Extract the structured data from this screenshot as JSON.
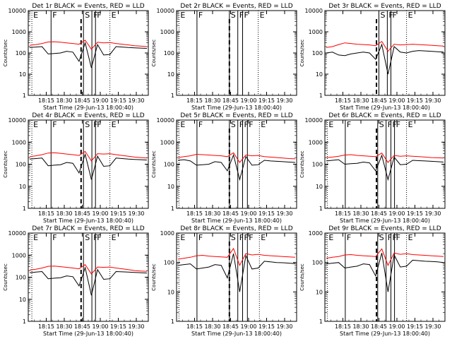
{
  "chart_data": [
    {
      "type": "line",
      "title": "Det 1r BLACK = Events, RED = LLD",
      "ylabel": "Counts/sec",
      "xlabel": "Start Time (29-Jun-13 18:00:40)",
      "x_ticks": [
        "18:15",
        "18:30",
        "18:45",
        "19:00",
        "19:15",
        "19:30"
      ],
      "y_ticks": [
        "1",
        "10",
        "100",
        "1000",
        "10000"
      ],
      "ylim": [
        1,
        10000
      ],
      "yscale": "log",
      "markers": [
        {
          "label": "E",
          "t": "18:03"
        },
        {
          "label": "F",
          "t": "18:19"
        },
        {
          "label": "S",
          "t": "18:46"
        },
        {
          "label": "F",
          "t": "18:53"
        },
        {
          "label": "F",
          "t": "18:56"
        },
        {
          "label": "E",
          "t": "19:08"
        }
      ],
      "dashed_t": "18:44",
      "series": [
        {
          "color": "#000000",
          "values": [
            180,
            190,
            200,
            90,
            95,
            100,
            120,
            110,
            40,
            300,
            20,
            250,
            80,
            85,
            200,
            190,
            180,
            175,
            170,
            165
          ]
        },
        {
          "color": "#ff0000",
          "values": [
            230,
            250,
            280,
            330,
            340,
            320,
            300,
            280,
            260,
            400,
            150,
            320,
            300,
            310,
            280,
            260,
            240,
            220,
            210,
            200
          ]
        }
      ]
    },
    {
      "type": "line",
      "title": "Det 2r BLACK = Events, RED = LLD",
      "ylabel": "Counts/sec",
      "xlabel": "Start Time (29-Jun-13 18:00:40)",
      "x_ticks": [
        "18:15",
        "18:30",
        "18:45",
        "19:00",
        "19:15",
        "19:30"
      ],
      "y_ticks": [
        "1",
        "10",
        "100",
        "1000",
        "10000"
      ],
      "ylim": [
        1,
        10000
      ],
      "yscale": "log",
      "markers": [
        {
          "label": "E",
          "t": "18:02"
        },
        {
          "label": "F",
          "t": "18:17"
        },
        {
          "label": "S",
          "t": "18:44"
        },
        {
          "label": "F",
          "t": "18:51"
        },
        {
          "label": "F",
          "t": "18:55"
        },
        {
          "label": "E",
          "t": "19:08"
        }
      ],
      "dashed_t": "18:44",
      "series": []
    },
    {
      "type": "line",
      "title": "Det 3r BLACK = Events, RED = LLD",
      "ylabel": "Counts/sec",
      "xlabel": "Start Time (29-Jun-13 18:00:40)",
      "x_ticks": [
        "18:15",
        "18:30",
        "18:45",
        "19:00",
        "19:15",
        "19:30"
      ],
      "y_ticks": [
        "1",
        "10",
        "100",
        "1000",
        "10000"
      ],
      "ylim": [
        1,
        10000
      ],
      "yscale": "log",
      "markers": [
        {
          "label": "S",
          "t": "18:45"
        },
        {
          "label": "F",
          "t": "18:52"
        },
        {
          "label": "F",
          "t": "18:55"
        },
        {
          "label": "E",
          "t": "19:08"
        }
      ],
      "dashed_t": "18:43",
      "series": [
        {
          "color": "#000000",
          "values": [
            100,
            110,
            80,
            75,
            90,
            100,
            110,
            100,
            50,
            250,
            10,
            200,
            110,
            100,
            120,
            130,
            125,
            120,
            115,
            110
          ]
        },
        {
          "color": "#ff0000",
          "values": [
            180,
            200,
            250,
            300,
            280,
            260,
            250,
            240,
            220,
            350,
            120,
            260,
            240,
            250,
            260,
            250,
            240,
            230,
            220,
            210
          ]
        }
      ]
    },
    {
      "type": "line",
      "title": "Det 4r BLACK = Events, RED = LLD",
      "ylabel": "Counts/sec",
      "xlabel": "Start Time (29-Jun-13 18:00:40)",
      "x_ticks": [
        "18:15",
        "18:30",
        "18:45",
        "19:00",
        "19:15",
        "19:30"
      ],
      "y_ticks": [
        "1",
        "10",
        "100",
        "1000",
        "10000"
      ],
      "ylim": [
        1,
        10000
      ],
      "yscale": "log",
      "markers": [
        {
          "label": "E",
          "t": "18:03"
        },
        {
          "label": "F",
          "t": "18:19"
        },
        {
          "label": "S",
          "t": "18:46"
        },
        {
          "label": "F",
          "t": "18:53"
        },
        {
          "label": "F",
          "t": "18:56"
        },
        {
          "label": "E",
          "t": "19:08"
        }
      ],
      "dashed_t": "18:44",
      "series": [
        {
          "color": "#000000",
          "values": [
            170,
            180,
            190,
            85,
            90,
            95,
            120,
            110,
            40,
            280,
            20,
            230,
            80,
            85,
            190,
            180,
            170,
            165,
            160,
            155
          ]
        },
        {
          "color": "#ff0000",
          "values": [
            220,
            240,
            270,
            320,
            330,
            310,
            290,
            270,
            250,
            380,
            140,
            300,
            290,
            300,
            270,
            250,
            230,
            210,
            200,
            190
          ]
        }
      ]
    },
    {
      "type": "line",
      "title": "Det 5r BLACK = Events, RED = LLD",
      "ylabel": "Counts/sec",
      "xlabel": "Start Time (29-Jun-13 18:00:40)",
      "x_ticks": [
        "18:15",
        "18:30",
        "18:45",
        "19:00",
        "19:15",
        "19:30"
      ],
      "y_ticks": [
        "1",
        "10",
        "100",
        "1000",
        "10000"
      ],
      "ylim": [
        1,
        10000
      ],
      "yscale": "log",
      "markers": [
        {
          "label": "E",
          "t": "18:02"
        },
        {
          "label": "F",
          "t": "18:17"
        },
        {
          "label": "S",
          "t": "18:44"
        },
        {
          "label": "F",
          "t": "18:51"
        },
        {
          "label": "F",
          "t": "18:55"
        },
        {
          "label": "F",
          "t": "18:59"
        },
        {
          "label": "E",
          "t": "19:09"
        }
      ],
      "dashed_t": "18:44",
      "series": [
        {
          "color": "#000000",
          "values": [
            150,
            160,
            140,
            90,
            95,
            100,
            130,
            120,
            50,
            260,
            20,
            220,
            90,
            95,
            150,
            140,
            135,
            130,
            125,
            120
          ]
        },
        {
          "color": "#ff0000",
          "values": [
            200,
            220,
            240,
            280,
            270,
            260,
            250,
            240,
            220,
            330,
            120,
            260,
            240,
            250,
            220,
            210,
            200,
            190,
            180,
            175
          ]
        }
      ]
    },
    {
      "type": "line",
      "title": "Det 6r BLACK = Events, RED = LLD",
      "ylabel": "Counts/sec",
      "xlabel": "Start Time (29-Jun-13 18:00:40)",
      "x_ticks": [
        "18:15",
        "18:30",
        "18:45",
        "19:00",
        "19:15",
        "19:30"
      ],
      "y_ticks": [
        "1",
        "10",
        "100",
        "1000",
        "10000"
      ],
      "ylim": [
        1,
        10000
      ],
      "yscale": "log",
      "markers": [
        {
          "label": "E",
          "t": "18:02"
        },
        {
          "label": "F",
          "t": "18:17"
        },
        {
          "label": "S",
          "t": "18:44"
        },
        {
          "label": "F",
          "t": "18:51"
        },
        {
          "label": "F",
          "t": "18:55"
        },
        {
          "label": "F",
          "t": "18:58"
        },
        {
          "label": "E",
          "t": "19:08"
        }
      ],
      "dashed_t": "18:43",
      "series": [
        {
          "color": "#000000",
          "values": [
            140,
            150,
            160,
            100,
            105,
            110,
            125,
            115,
            50,
            250,
            20,
            210,
            95,
            100,
            150,
            145,
            140,
            135,
            130,
            125
          ]
        },
        {
          "color": "#ff0000",
          "values": [
            200,
            210,
            230,
            260,
            270,
            250,
            240,
            230,
            220,
            320,
            120,
            250,
            230,
            240,
            230,
            220,
            210,
            200,
            195,
            190
          ]
        }
      ]
    },
    {
      "type": "line",
      "title": "Det 7r BLACK = Events, RED = LLD",
      "ylabel": "Counts/sec",
      "xlabel": "Start Time (29-Jun-13 18:00:40)",
      "x_ticks": [
        "18:15",
        "18:30",
        "18:45",
        "19:00",
        "19:15",
        "19:30"
      ],
      "y_ticks": [
        "1",
        "10",
        "100",
        "1000",
        "10000"
      ],
      "ylim": [
        1,
        10000
      ],
      "yscale": "log",
      "markers": [
        {
          "label": "E",
          "t": "18:03"
        },
        {
          "label": "F",
          "t": "18:19"
        },
        {
          "label": "S",
          "t": "18:46"
        },
        {
          "label": "F",
          "t": "18:53"
        },
        {
          "label": "F",
          "t": "18:56"
        },
        {
          "label": "E",
          "t": "19:08"
        }
      ],
      "dashed_t": "18:44",
      "series": [
        {
          "color": "#000000",
          "values": [
            160,
            170,
            180,
            85,
            90,
            95,
            115,
            105,
            40,
            270,
            15,
            220,
            80,
            85,
            180,
            175,
            170,
            165,
            160,
            155
          ]
        },
        {
          "color": "#ff0000",
          "values": [
            210,
            230,
            260,
            310,
            320,
            300,
            280,
            260,
            240,
            370,
            140,
            290,
            280,
            290,
            260,
            240,
            220,
            200,
            190,
            185
          ]
        }
      ]
    },
    {
      "type": "line",
      "title": "Det 8r BLACK = Events, RED = LLD",
      "ylabel": "Counts/sec",
      "xlabel": "Start Time (29-Jun-13 18:00:40)",
      "x_ticks": [
        "18:15",
        "18:30",
        "18:45",
        "19:00",
        "19:15",
        "19:30"
      ],
      "y_ticks": [
        "1",
        "10",
        "100",
        "1000"
      ],
      "ylim": [
        1,
        1000
      ],
      "yscale": "log",
      "markers": [
        {
          "label": "E",
          "t": "18:02"
        },
        {
          "label": "F",
          "t": "18:17"
        },
        {
          "label": "S",
          "t": "18:44"
        },
        {
          "label": "F",
          "t": "18:51"
        },
        {
          "label": "F",
          "t": "18:55"
        },
        {
          "label": "F",
          "t": "18:59"
        },
        {
          "label": "E",
          "t": "19:09"
        }
      ],
      "dashed_t": "18:44",
      "series": [
        {
          "color": "#000000",
          "values": [
            80,
            85,
            90,
            60,
            65,
            70,
            85,
            80,
            30,
            200,
            10,
            170,
            60,
            65,
            110,
            105,
            100,
            98,
            95,
            92
          ]
        },
        {
          "color": "#ff0000",
          "values": [
            130,
            140,
            150,
            170,
            175,
            165,
            160,
            155,
            150,
            300,
            80,
            200,
            180,
            190,
            175,
            170,
            165,
            160,
            155,
            150
          ]
        }
      ]
    },
    {
      "type": "line",
      "title": "Det 9r BLACK = Events, RED = LLD",
      "ylabel": "Counts/sec",
      "xlabel": "Start Time (29-Jun-13 18:00:40)",
      "x_ticks": [
        "18:15",
        "18:30",
        "18:45",
        "19:00",
        "19:15",
        "19:30"
      ],
      "y_ticks": [
        "1",
        "10",
        "100",
        "1000"
      ],
      "ylim": [
        1,
        1000
      ],
      "yscale": "log",
      "markers": [
        {
          "label": "E",
          "t": "18:02"
        },
        {
          "label": "F",
          "t": "18:17"
        },
        {
          "label": "S",
          "t": "18:44"
        },
        {
          "label": "F",
          "t": "18:51"
        },
        {
          "label": "F",
          "t": "18:55"
        },
        {
          "label": "F",
          "t": "18:58"
        },
        {
          "label": "E",
          "t": "19:08"
        }
      ],
      "dashed_t": "18:43",
      "series": [
        {
          "color": "#000000",
          "values": [
            90,
            95,
            100,
            65,
            70,
            75,
            90,
            85,
            35,
            210,
            10,
            180,
            70,
            75,
            120,
            115,
            110,
            108,
            105,
            100
          ]
        },
        {
          "color": "#ff0000",
          "values": [
            140,
            150,
            160,
            180,
            185,
            175,
            170,
            165,
            160,
            290,
            80,
            210,
            190,
            200,
            185,
            180,
            175,
            170,
            165,
            160
          ]
        }
      ]
    }
  ]
}
